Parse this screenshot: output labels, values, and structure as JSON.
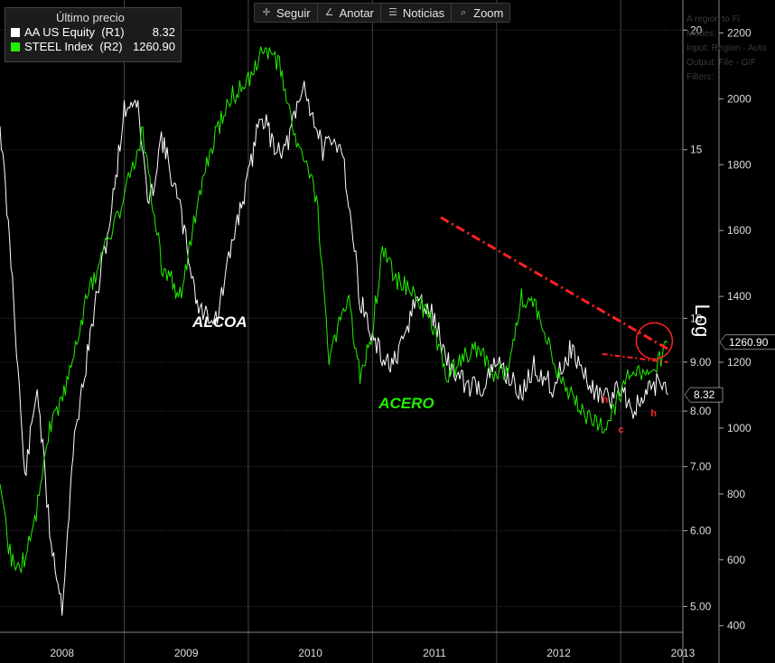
{
  "toolbar": {
    "items": [
      {
        "label": "Seguir",
        "icon": "crosshair-icon"
      },
      {
        "label": "Anotar",
        "icon": "pencil-icon"
      },
      {
        "label": "Noticias",
        "icon": "news-icon"
      },
      {
        "label": "Zoom",
        "icon": "magnifier-icon"
      }
    ]
  },
  "legend": {
    "title": "Último precio",
    "entries": [
      {
        "name": "AA US Equity  (R1)",
        "value": "8.32",
        "color": "#ffffff"
      },
      {
        "name": "STEEL Index  (R2)",
        "value": "1260.90",
        "color": "#22ee00"
      }
    ]
  },
  "ghost_text": [
    "A region to Fi",
    "Modes:",
    "Input: Region - Auto",
    "Output: File - GIF",
    "Filters:"
  ],
  "colors": {
    "background": "#000000",
    "grid": "#3c3c3c",
    "alcoa": "#ffffff",
    "acero": "#22ee00",
    "annotation": "#ff2222"
  },
  "chart_data": {
    "type": "line",
    "x_ticks": [
      "2008",
      "2009",
      "2010",
      "2011",
      "2012",
      "2013"
    ],
    "x_range": [
      2008.0,
      2013.5
    ],
    "axis_label": "Log",
    "r1": {
      "ticks": [
        "5.00",
        "6.00",
        "7.00",
        "8.00",
        "9.00",
        "10",
        "15",
        "20"
      ],
      "range": [
        4.7,
        21.5
      ],
      "scale": "log"
    },
    "r2": {
      "ticks": [
        "400",
        "600",
        "800",
        "1000",
        "1200",
        "1400",
        "1600",
        "1800",
        "2000",
        "2200"
      ],
      "range": [
        380,
        2300
      ],
      "scale": "linear"
    },
    "series": [
      {
        "name": "AA US Equity",
        "label": "ALCOA",
        "color": "#ffffff",
        "axis": "r1",
        "last": "8.32",
        "x": [
          2008.0,
          2008.1,
          2008.2,
          2008.3,
          2008.4,
          2008.5,
          2008.6,
          2008.75,
          2008.9,
          2009.0,
          2009.1,
          2009.2,
          2009.3,
          2009.45,
          2009.6,
          2009.75,
          2009.9,
          2010.0,
          2010.1,
          2010.2,
          2010.3,
          2010.45,
          2010.6,
          2010.75,
          2010.9,
          2011.0,
          2011.1,
          2011.2,
          2011.35,
          2011.5,
          2011.6,
          2011.75,
          2011.9,
          2012.0,
          2012.1,
          2012.2,
          2012.3,
          2012.45,
          2012.6,
          2012.75,
          2012.9,
          2013.0,
          2013.1,
          2013.2,
          2013.3,
          2013.38
        ],
        "y": [
          16.0,
          11.0,
          6.8,
          8.5,
          6.0,
          5.0,
          7.5,
          10.0,
          13.0,
          16.5,
          17.0,
          13.0,
          15.5,
          13.0,
          10.2,
          10.0,
          12.5,
          14.0,
          16.5,
          15.2,
          15.0,
          17.5,
          15.0,
          15.3,
          10.5,
          9.5,
          9.0,
          9.0,
          10.5,
          10.0,
          9.0,
          8.5,
          8.5,
          9.0,
          8.7,
          8.3,
          8.9,
          8.5,
          9.3,
          8.5,
          8.2,
          8.5,
          8.0,
          8.3,
          8.6,
          8.32
        ]
      },
      {
        "name": "STEEL Index",
        "label": "ACERO",
        "color": "#22ee00",
        "axis": "r2",
        "last": "1260.90",
        "x": [
          2008.0,
          2008.08,
          2008.16,
          2008.28,
          2008.4,
          2008.55,
          2008.7,
          2008.85,
          2009.0,
          2009.15,
          2009.3,
          2009.45,
          2009.55,
          2009.7,
          2009.85,
          2010.0,
          2010.1,
          2010.25,
          2010.4,
          2010.55,
          2010.65,
          2010.8,
          2010.9,
          2011.0,
          2011.08,
          2011.2,
          2011.35,
          2011.5,
          2011.6,
          2011.7,
          2011.85,
          2012.0,
          2012.1,
          2012.2,
          2012.35,
          2012.5,
          2012.6,
          2012.7,
          2012.85,
          2013.0,
          2013.1,
          2013.2,
          2013.3,
          2013.38
        ],
        "y": [
          800,
          620,
          560,
          720,
          1000,
          1150,
          1400,
          1550,
          1700,
          1900,
          1500,
          1400,
          1600,
          1850,
          2000,
          2050,
          2150,
          2100,
          1850,
          1700,
          1200,
          1400,
          1150,
          1300,
          1550,
          1450,
          1400,
          1300,
          1150,
          1200,
          1250,
          1150,
          1200,
          1400,
          1350,
          1150,
          1100,
          1050,
          1000,
          1100,
          1200,
          1150,
          1200,
          1260.9
        ]
      }
    ],
    "annotations": [
      {
        "type": "text",
        "text": "ALCOA",
        "color": "#ffffff"
      },
      {
        "type": "text",
        "text": "ACERO",
        "color": "#22ee00"
      },
      {
        "type": "text",
        "text": "h",
        "color": "#ff2222"
      },
      {
        "type": "text",
        "text": "c",
        "color": "#ff2222"
      },
      {
        "type": "text",
        "text": "h",
        "color": "#ff2222"
      }
    ]
  }
}
